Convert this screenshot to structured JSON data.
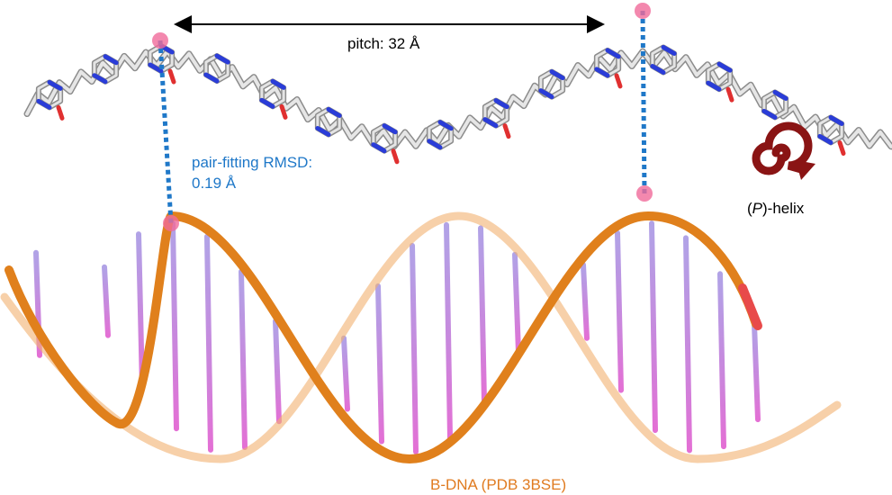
{
  "pitch_label": "pitch: 32 Å",
  "rmsd_label": {
    "line1": "pair-fitting RMSD:",
    "line2": "0.19 Å"
  },
  "helix_label": {
    "open": "(",
    "italic": "P",
    "close": ")-helix"
  },
  "dna_label": "B-DNA (PDB 3BSE)"
}
